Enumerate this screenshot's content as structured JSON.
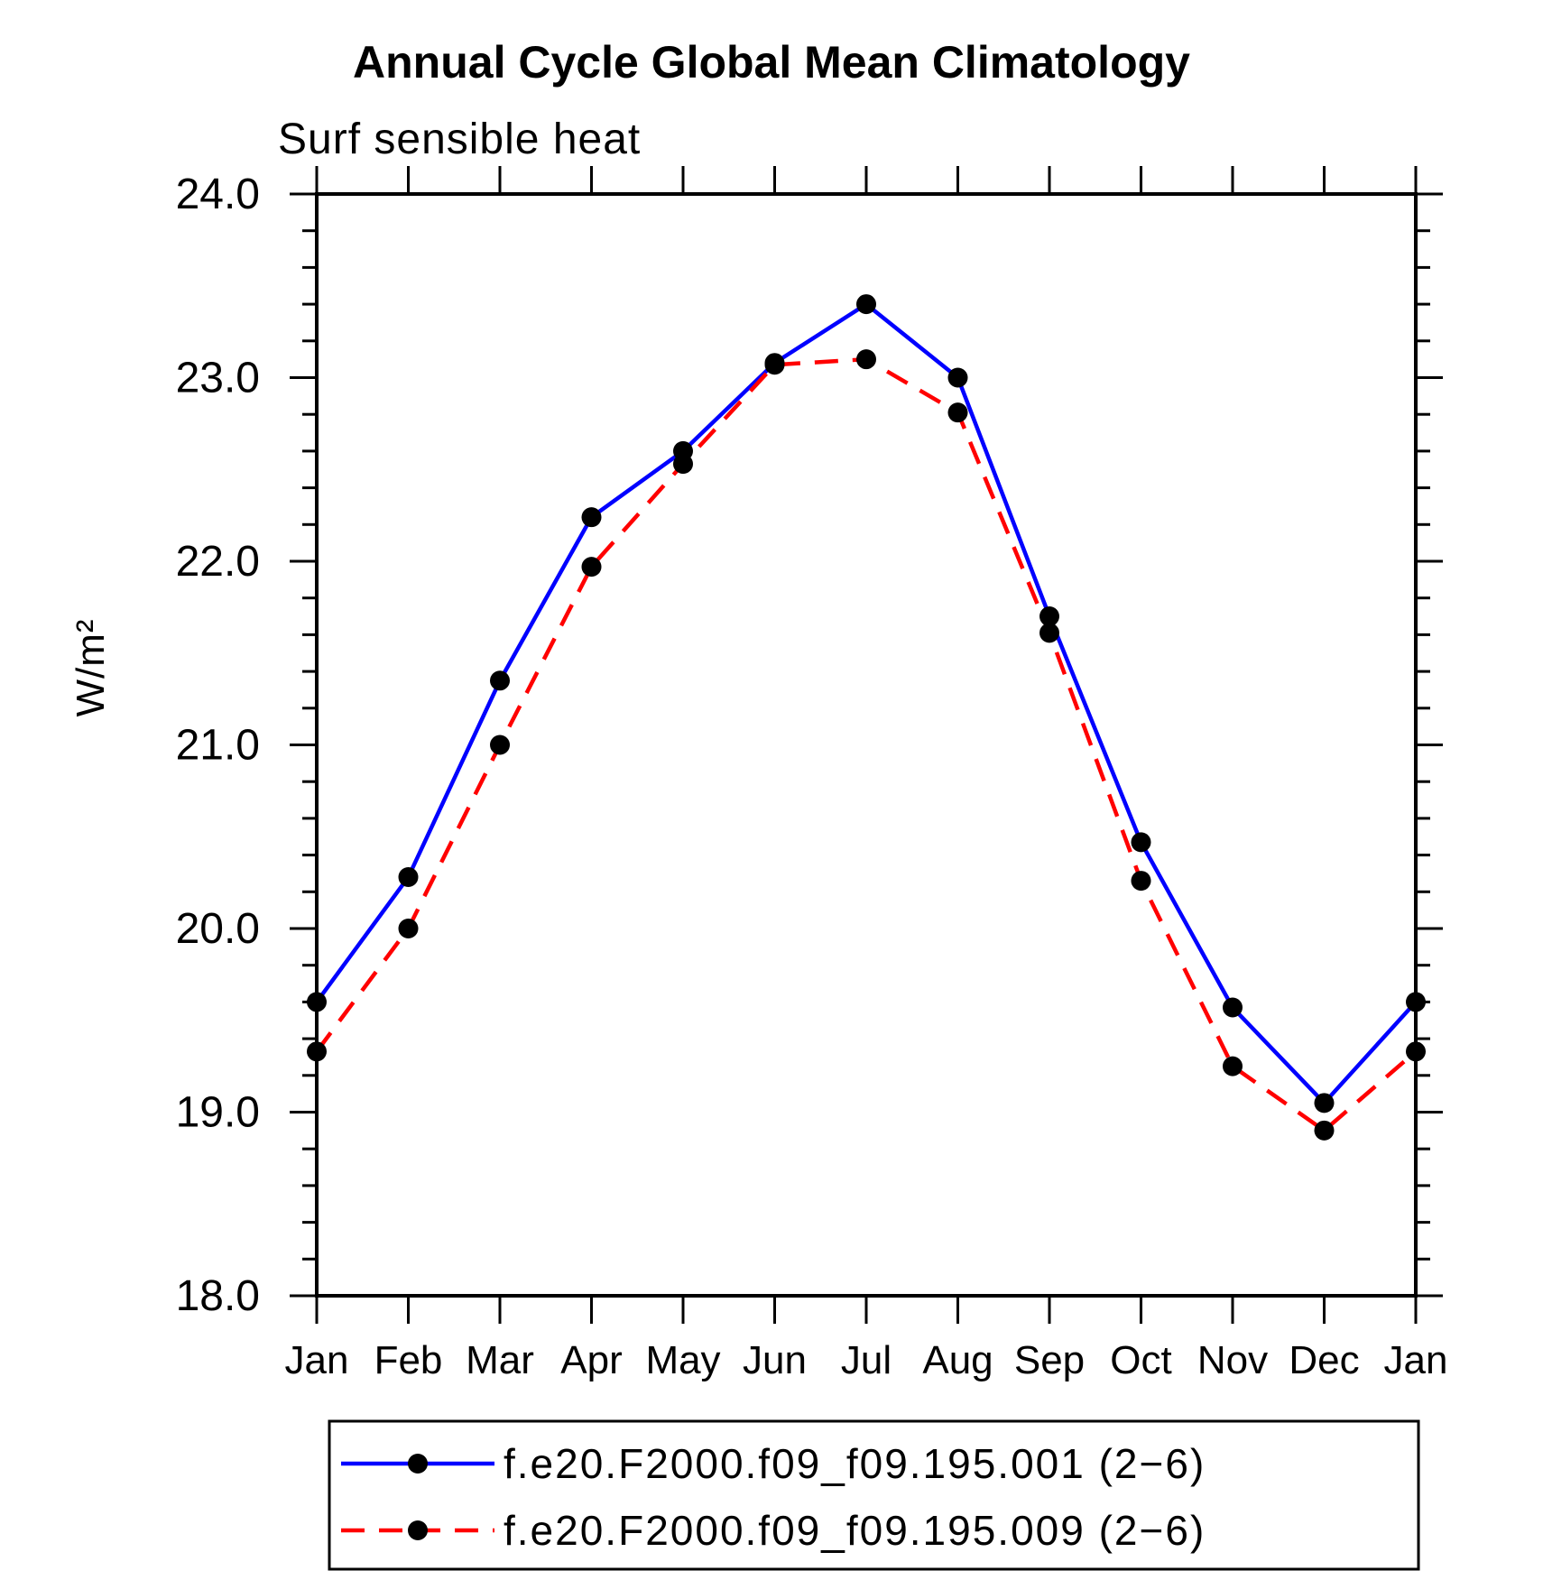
{
  "chart_data": {
    "type": "line",
    "title": "Annual Cycle Global Mean Climatology",
    "subtitle": "Surf sensible heat",
    "ylabel": "W/m²",
    "xlabel": "",
    "categories": [
      "Jan",
      "Feb",
      "Mar",
      "Apr",
      "May",
      "Jun",
      "Jul",
      "Aug",
      "Sep",
      "Oct",
      "Nov",
      "Dec",
      "Jan"
    ],
    "ylim": [
      18.0,
      24.0
    ],
    "ytick_major": 1.0,
    "ytick_minor": 0.2,
    "ytick_decimals": 1,
    "grid": false,
    "legend_position": "bottom",
    "axis_color": "#000000",
    "marker_color": "#000000",
    "marker_shape": "filled-circle",
    "series": [
      {
        "name": "f.e20.F2000.f09_f09.195.001 (2−6)",
        "color": "#0000ff",
        "style": "solid",
        "values": [
          19.6,
          20.28,
          21.35,
          22.24,
          22.6,
          23.08,
          23.4,
          23.0,
          21.7,
          20.47,
          19.57,
          19.05,
          19.6
        ]
      },
      {
        "name": "f.e20.F2000.f09_f09.195.009 (2−6)",
        "color": "#ff0000",
        "style": "dashed",
        "values": [
          19.33,
          20.0,
          21.0,
          21.97,
          22.53,
          23.07,
          23.1,
          22.81,
          21.61,
          20.26,
          19.25,
          18.9,
          19.33
        ]
      }
    ]
  }
}
